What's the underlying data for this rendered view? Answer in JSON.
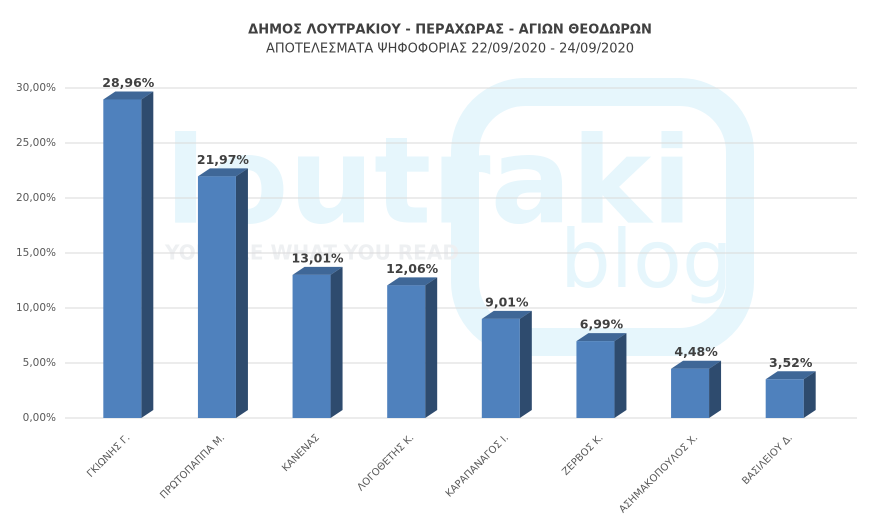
{
  "chart_data": {
    "type": "bar3d",
    "title": "ΔΗΜΟΣ ΛΟΥΤΡΑΚΙΟΥ - ΠΕΡΑΧΩΡΑΣ - ΑΓΙΩΝ ΘΕΟΔΩΡΩΝ",
    "subtitle": "ΑΠΟΤΕΛΕΣΜΑΤΑ ΨΗΦΟΦΟΡΙΑΣ 22/09/2020 - 24/09/2020",
    "watermark": [
      "loutraki",
      "blog",
      "YOU ARE WHAT YOU READ"
    ],
    "categories": [
      "ΓΚΙΩΝΗΣ Γ.",
      "ΠΡΩΤΟΠΑΠΠΑ Μ.",
      "ΚΑΝΕΝΑΣ",
      "ΛΟΓΟΘΕΤΗΣ Κ.",
      "ΚΑΡΑΠΑΝΑΓΟΣ Ι.",
      "ΖΕΡΒΟΣ Κ.",
      "ΑΣΗΜΑΚΟΠΟΥΛΟΣ Χ.",
      "ΒΑΣΙΛΕΙΟΥ Δ."
    ],
    "values": [
      28.96,
      21.97,
      13.01,
      12.06,
      9.01,
      6.99,
      4.48,
      3.52
    ],
    "value_labels": [
      "28,96%",
      "21,97%",
      "13,01%",
      "12,06%",
      "9,01%",
      "6,99%",
      "4,48%",
      "3,52%"
    ],
    "color": "#4f81bd",
    "ylim": [
      0,
      30
    ],
    "yticks": [
      {
        "value": 0,
        "label": "0,00%"
      },
      {
        "value": 5,
        "label": "5,00%"
      },
      {
        "value": 10,
        "label": "10,00%"
      },
      {
        "value": 15,
        "label": "15,00%"
      },
      {
        "value": 20,
        "label": "20,00%"
      },
      {
        "value": 25,
        "label": "25,00%"
      },
      {
        "value": 30,
        "label": "30,00%"
      }
    ],
    "grid": true
  }
}
